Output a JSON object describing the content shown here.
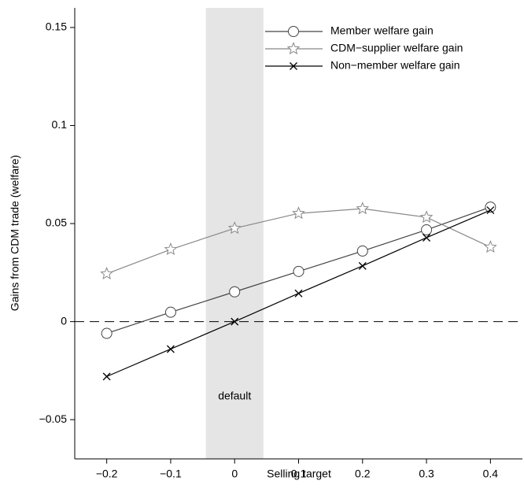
{
  "chart_data": {
    "type": "line",
    "xlabel": "Selling target",
    "ylabel": "Gains from CDM trade (welfare)",
    "x": [
      -0.2,
      -0.1,
      0,
      0.1,
      0.2,
      0.3,
      0.4
    ],
    "series": [
      {
        "name": "Member welfare gain",
        "color": "#444444",
        "marker": "circle",
        "values": [
          -0.006,
          0.0048,
          0.0152,
          0.0256,
          0.036,
          0.0468,
          0.0584
        ]
      },
      {
        "name": "CDM−supplier welfare gain",
        "color": "#888888",
        "marker": "star",
        "values": [
          0.0244,
          0.0368,
          0.0476,
          0.0552,
          0.0576,
          0.0532,
          0.038
        ]
      },
      {
        "name": "Non−member welfare gain",
        "color": "#000000",
        "marker": "x",
        "values": [
          -0.028,
          -0.014,
          0,
          0.0144,
          0.0284,
          0.0428,
          0.0568
        ]
      }
    ],
    "xlim": [
      -0.25,
      0.45
    ],
    "ylim": [
      -0.07,
      0.16
    ],
    "xticks": [
      {
        "value": -0.2,
        "label": "−0.2"
      },
      {
        "value": -0.1,
        "label": "−0.1"
      },
      0,
      0.1,
      0.2,
      0.3,
      0.4
    ],
    "yticks": [
      {
        "value": -0.05,
        "label": "−0.05"
      },
      0,
      0.05,
      0.1,
      0.15
    ],
    "shade": [
      -0.045,
      0.045
    ],
    "shade_color": "#e5e5e5",
    "annotation": "default",
    "reference_line": 0,
    "legend": "upper right"
  }
}
